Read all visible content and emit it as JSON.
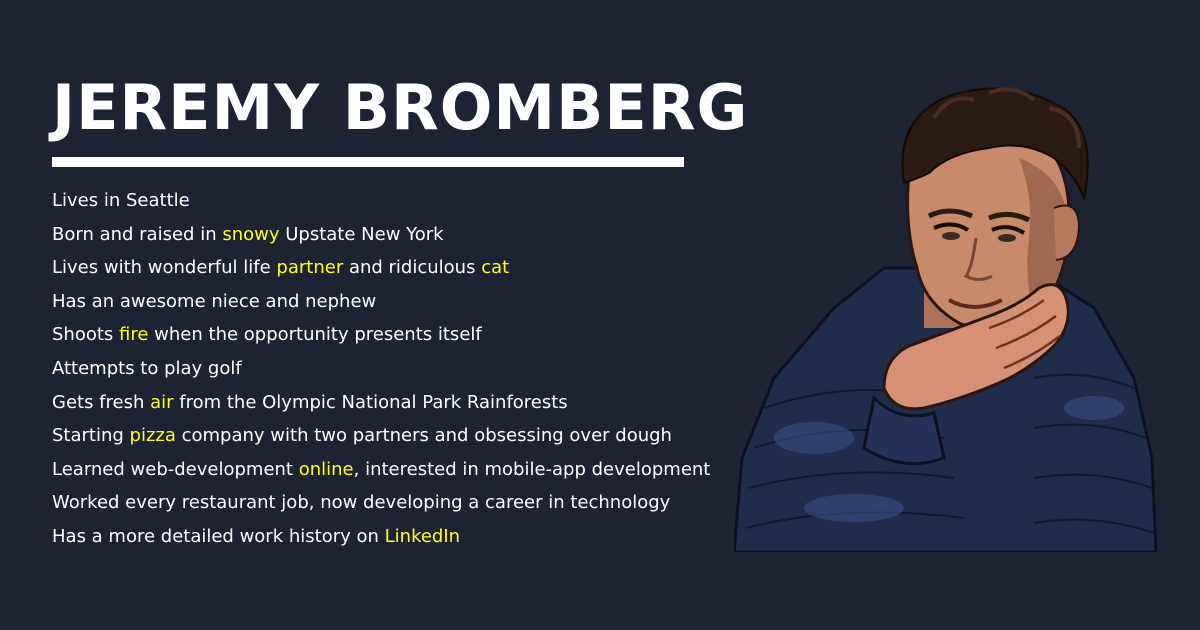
{
  "name": "JEREMY BROMBERG",
  "colors": {
    "background": "#1d2333",
    "text": "#ffffff",
    "highlight": "#ffff1e"
  },
  "facts": [
    {
      "text": "Lives in Seattle"
    },
    {
      "before": "Born and raised in ",
      "highlight": "snowy",
      "after": " Upstate New York"
    },
    {
      "before": "Lives with wonderful life ",
      "highlight": "partner",
      "middle": " and ridiculous ",
      "highlight2": "cat"
    },
    {
      "text": "Has an awesome niece and nephew"
    },
    {
      "before": "Shoots ",
      "highlight": "fire",
      "after": " when the opportunity presents itself"
    },
    {
      "text": "Attempts to play golf"
    },
    {
      "before": "Gets fresh ",
      "highlight": "air",
      "after": " from the Olympic National Park Rainforests"
    },
    {
      "before": "Starting ",
      "highlight": "pizza",
      "after": " company with two partners and obsessing over dough"
    },
    {
      "before": "Learned web-development ",
      "highlight": "online",
      "after": ", interested in mobile-app development"
    },
    {
      "text": "Worked every restaurant job, now developing a career in technology"
    },
    {
      "before": "Has a more detailed work history on ",
      "link": "LinkedIn"
    }
  ],
  "portrait": {
    "icon": "portrait-illustration"
  }
}
